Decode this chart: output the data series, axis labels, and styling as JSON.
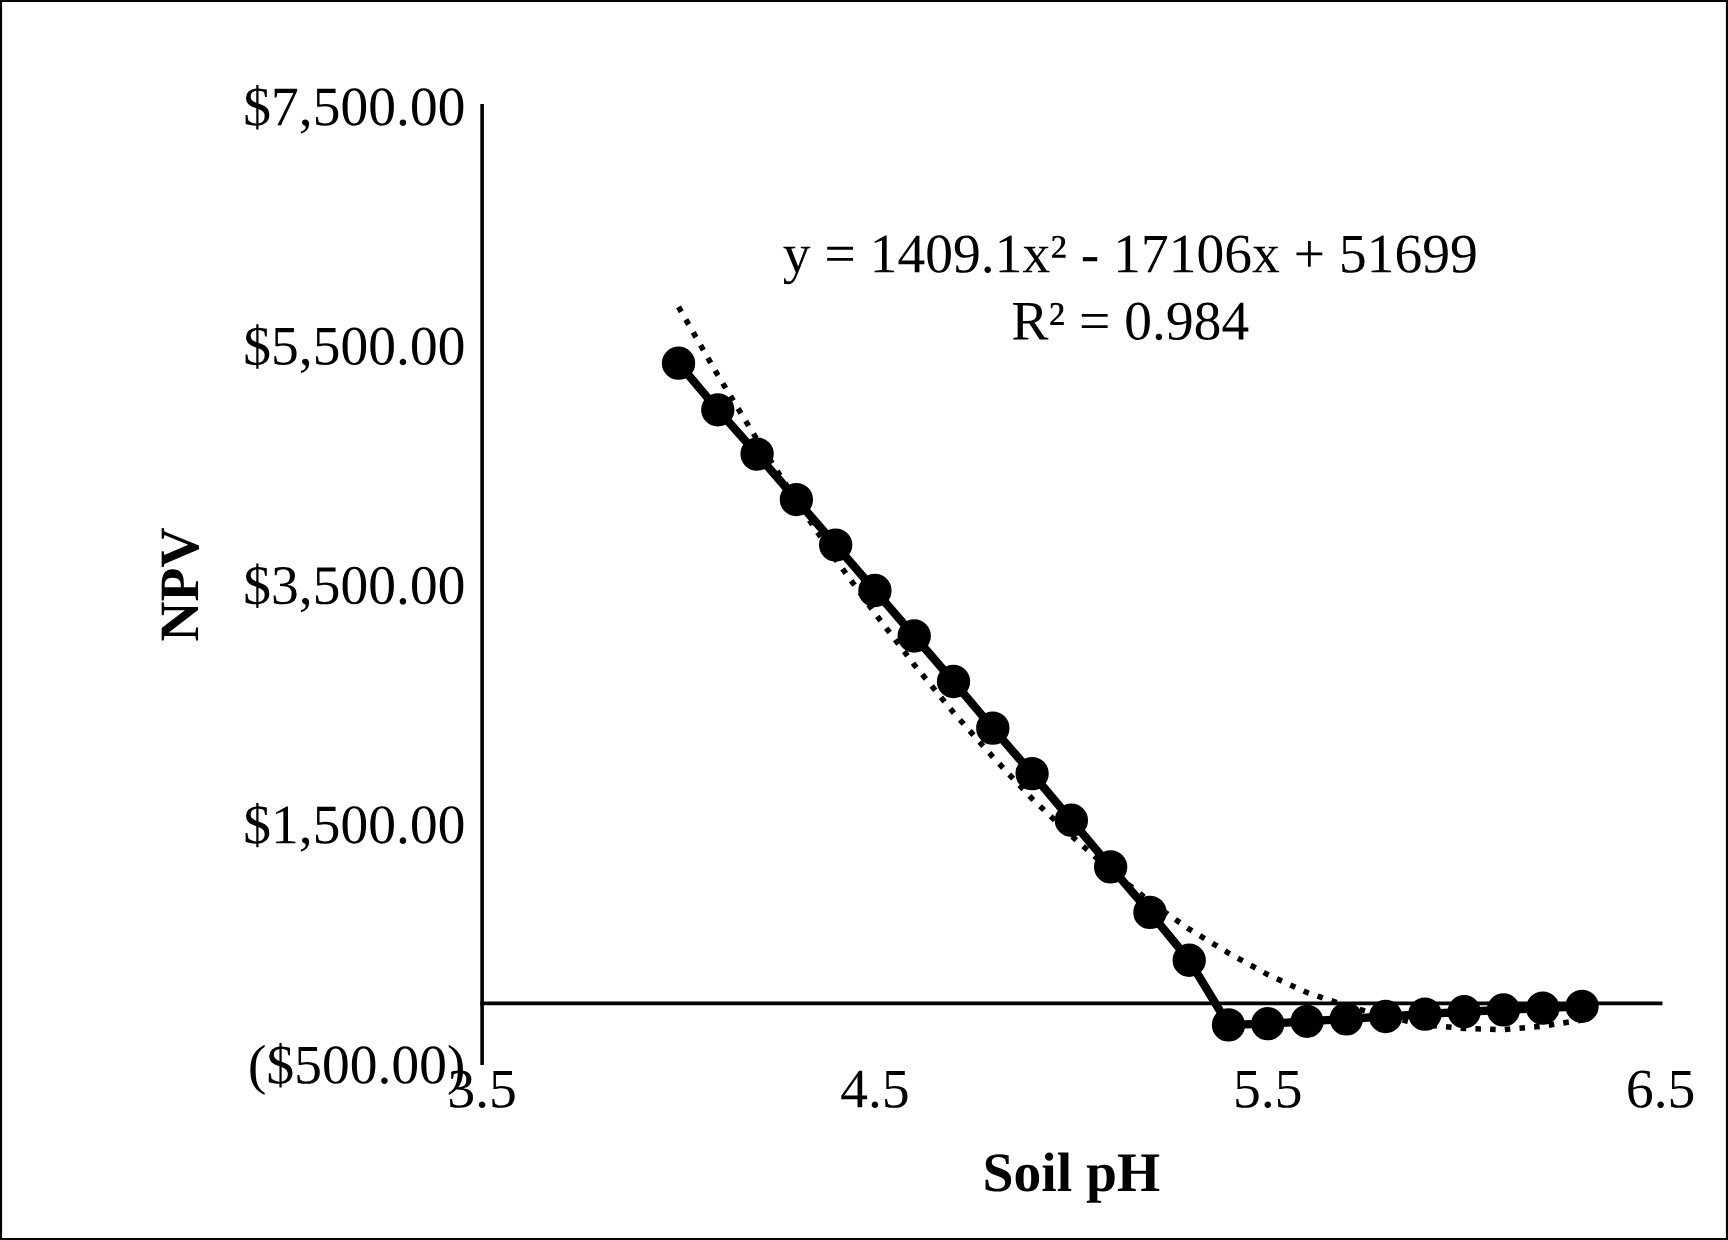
{
  "chart_data": {
    "type": "line",
    "xlabel": "Soil pH",
    "ylabel": "NPV",
    "annotations": [
      "y = 1409.1x² - 17106x + 51699",
      "R² = 0.984"
    ],
    "xlim": [
      3.5,
      6.5
    ],
    "xticks": [
      3.5,
      4.5,
      5.5,
      6.5
    ],
    "ylim": [
      -500,
      7500
    ],
    "yticks": [
      {
        "value": -500,
        "label": "($500.00)"
      },
      {
        "value": 1500,
        "label": "$1,500.00"
      },
      {
        "value": 3500,
        "label": "$3,500.00"
      },
      {
        "value": 5500,
        "label": "$5,500.00"
      },
      {
        "value": 7500,
        "label": "$7,500.00"
      }
    ],
    "grid": false,
    "legend": false,
    "series": [
      {
        "color": "#000000",
        "marker": "circle",
        "line_style": "solid",
        "x": [
          4.0,
          4.1,
          4.2,
          4.3,
          4.4,
          4.5,
          4.6,
          4.7,
          4.8,
          4.9,
          5.0,
          5.1,
          5.2,
          5.3,
          5.4,
          5.5,
          5.6,
          5.7,
          5.8,
          5.9,
          6.0,
          6.1,
          6.2,
          6.3
        ],
        "values": [
          5350,
          4960,
          4590,
          4210,
          3830,
          3450,
          3070,
          2690,
          2300,
          1920,
          1530,
          1140,
          760,
          360,
          -180,
          -170,
          -150,
          -130,
          -110,
          -90,
          -70,
          -55,
          -40,
          -25
        ]
      },
      {
        "type": "line",
        "color": "#000000",
        "marker": "none",
        "line_style": "dotted",
        "x": [
          4.0,
          4.1,
          4.2,
          4.3,
          4.4,
          4.5,
          4.6,
          4.7,
          4.8,
          4.9,
          5.0,
          5.1,
          5.2,
          5.3,
          5.4,
          5.5,
          5.6,
          5.7,
          5.8,
          5.9,
          6.0,
          6.1,
          6.2,
          6.3
        ],
        "values": [
          5820,
          5250,
          4710,
          4200,
          3710,
          3260,
          2830,
          2430,
          2060,
          1710,
          1400,
          1110,
          850,
          620,
          420,
          240,
          90,
          -20,
          -110,
          -180,
          -210,
          -220,
          -190,
          -140
        ]
      }
    ]
  }
}
